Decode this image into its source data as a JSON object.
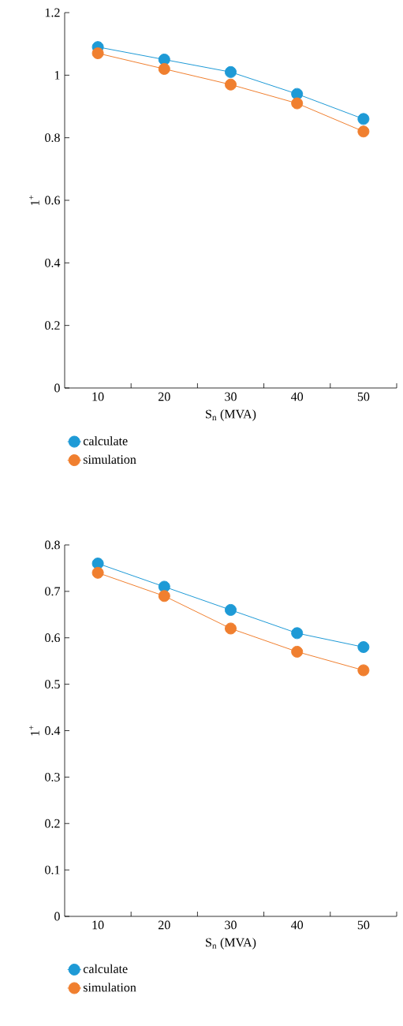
{
  "chart_data": [
    {
      "type": "line",
      "xlabel": "S$_{n}$ (MVA)",
      "ylabel": "1$^{+}$",
      "x": [
        10,
        20,
        30,
        40,
        50
      ],
      "xlim": [
        5,
        55
      ],
      "xticks": [
        10,
        20,
        30,
        40,
        50,
        {
          "value": 15,
          "label": null
        },
        {
          "value": 25,
          "label": null
        },
        {
          "value": 35,
          "label": null
        },
        {
          "value": 45,
          "label": null
        },
        {
          "value": 55,
          "label": null
        }
      ],
      "ylim": [
        0,
        1.2
      ],
      "yticks": [
        0,
        0.2,
        0.4,
        0.6,
        0.8,
        1,
        1.2
      ],
      "marker": "circle",
      "line_style": "solid",
      "legend": "bottom left",
      "series": [
        {
          "name": "calculate",
          "color": "#1e9ad6",
          "values": [
            1.09,
            1.05,
            1.01,
            0.94,
            0.86
          ]
        },
        {
          "name": "simulation",
          "color": "#f07f2f",
          "values": [
            1.07,
            1.02,
            0.97,
            0.91,
            0.82
          ]
        }
      ]
    },
    {
      "type": "line",
      "xlabel": "S$_{n}$ (MVA)",
      "ylabel": "1$^{+}$",
      "x": [
        10,
        20,
        30,
        40,
        50
      ],
      "xlim": [
        5,
        55
      ],
      "xticks": [
        10,
        20,
        30,
        40,
        50,
        {
          "value": 15,
          "label": null
        },
        {
          "value": 25,
          "label": null
        },
        {
          "value": 35,
          "label": null
        },
        {
          "value": 45,
          "label": null
        },
        {
          "value": 55,
          "label": null
        }
      ],
      "ylim": [
        0,
        0.8
      ],
      "yticks": [
        0,
        0.1,
        0.2,
        0.3,
        0.4,
        0.5,
        0.6,
        0.7,
        0.8
      ],
      "marker": "circle",
      "line_style": "solid",
      "legend": "bottom left",
      "series": [
        {
          "name": "calculate",
          "color": "#1e9ad6",
          "values": [
            0.76,
            0.71,
            0.66,
            0.61,
            0.58
          ]
        },
        {
          "name": "simulation",
          "color": "#f07f2f",
          "values": [
            0.74,
            0.69,
            0.62,
            0.57,
            0.53
          ]
        }
      ]
    }
  ]
}
